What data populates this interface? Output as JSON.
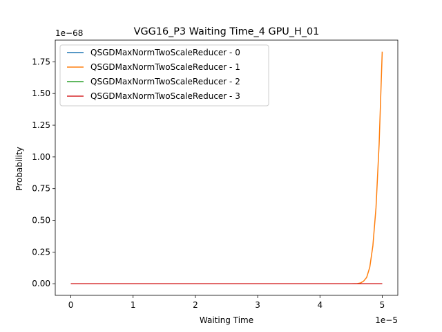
{
  "chart_data": {
    "type": "line",
    "title": "VGG16_P3 Waiting Time_4 GPU_H_01",
    "xlabel": "Waiting Time",
    "ylabel": "Probability",
    "x_offset_label": "1e−5",
    "y_offset_label": "1e−68",
    "xlim": [
      -2.5e-06,
      5.25e-05
    ],
    "ylim": [
      -9.15e-70,
      1.921e-68
    ],
    "xticks": [
      0,
      1e-05,
      2e-05,
      3e-05,
      4e-05,
      5e-05
    ],
    "xtick_labels": [
      "0",
      "1",
      "2",
      "3",
      "4",
      "5"
    ],
    "yticks": [
      0,
      2.5e-69,
      5e-69,
      7.5e-69,
      1e-68,
      1.25e-68,
      1.5e-68,
      1.75e-68
    ],
    "ytick_labels": [
      "0.00",
      "0.25",
      "0.50",
      "0.75",
      "1.00",
      "1.25",
      "1.50",
      "1.75"
    ],
    "grid": false,
    "legend_position": "top-left",
    "series": [
      {
        "name": "QSGDMaxNormTwoScaleReducer - 0",
        "color": "#1f77b4",
        "x": [
          0,
          5e-05
        ],
        "y": [
          0,
          0
        ]
      },
      {
        "name": "QSGDMaxNormTwoScaleReducer - 1",
        "color": "#ff7f0e",
        "x": [
          0,
          4.5e-05,
          4.6e-05,
          4.65e-05,
          4.7e-05,
          4.75e-05,
          4.8e-05,
          4.85e-05,
          4.9e-05,
          4.95e-05,
          5e-05
        ],
        "y": [
          0,
          0,
          1e-71,
          6e-71,
          2e-70,
          5e-70,
          1.3e-69,
          3e-69,
          6e-69,
          1.1e-68,
          1.83e-68
        ]
      },
      {
        "name": "QSGDMaxNormTwoScaleReducer - 2",
        "color": "#2ca02c",
        "x": [
          0,
          5e-05
        ],
        "y": [
          0,
          0
        ]
      },
      {
        "name": "QSGDMaxNormTwoScaleReducer - 3",
        "color": "#d62728",
        "x": [
          0,
          5e-05
        ],
        "y": [
          0,
          0
        ]
      }
    ]
  }
}
